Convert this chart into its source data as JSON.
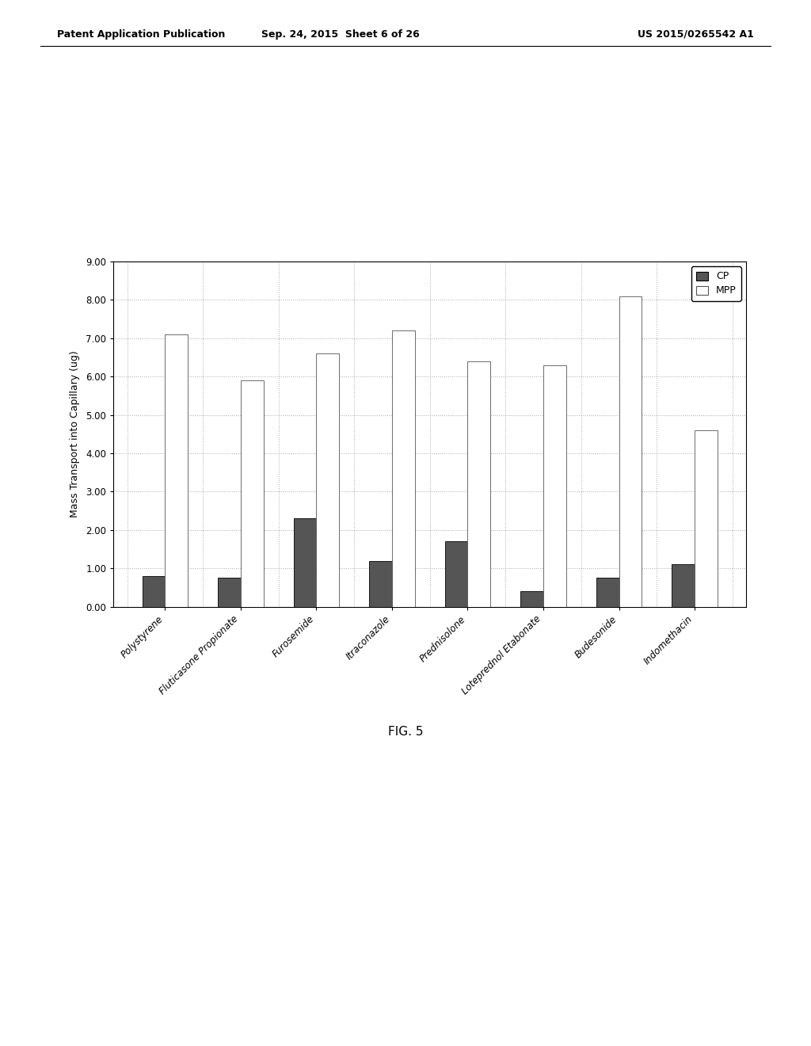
{
  "categories": [
    "Polystyrene",
    "Fluticasone Propionate",
    "Furosemide",
    "Itraconazole",
    "Prednisolone",
    "Loteprednol Etabonate",
    "Budesonide",
    "Indomethacin"
  ],
  "cp_values": [
    0.8,
    0.75,
    2.3,
    1.2,
    1.7,
    0.4,
    0.75,
    1.1
  ],
  "mpp_values": [
    7.1,
    5.9,
    6.6,
    7.2,
    6.4,
    6.3,
    8.1,
    4.6
  ],
  "cp_color": "#555555",
  "mpp_color": "#ffffff",
  "mpp_edge_color": "#555555",
  "ylabel": "Mass Transport into Capillary (ug)",
  "ylim": [
    0.0,
    9.0
  ],
  "yticks": [
    0.0,
    1.0,
    2.0,
    3.0,
    4.0,
    5.0,
    6.0,
    7.0,
    8.0,
    9.0
  ],
  "legend_cp": "CP",
  "legend_mpp": "MPP",
  "fig_caption": "FIG. 5",
  "header_left": "Patent Application Publication",
  "header_mid": "Sep. 24, 2015  Sheet 6 of 26",
  "header_right": "US 2015/0265542 A1",
  "background_color": "#ffffff",
  "bar_width": 0.3,
  "grid_color": "#aaaaaa",
  "grid_linestyle": "dotted"
}
